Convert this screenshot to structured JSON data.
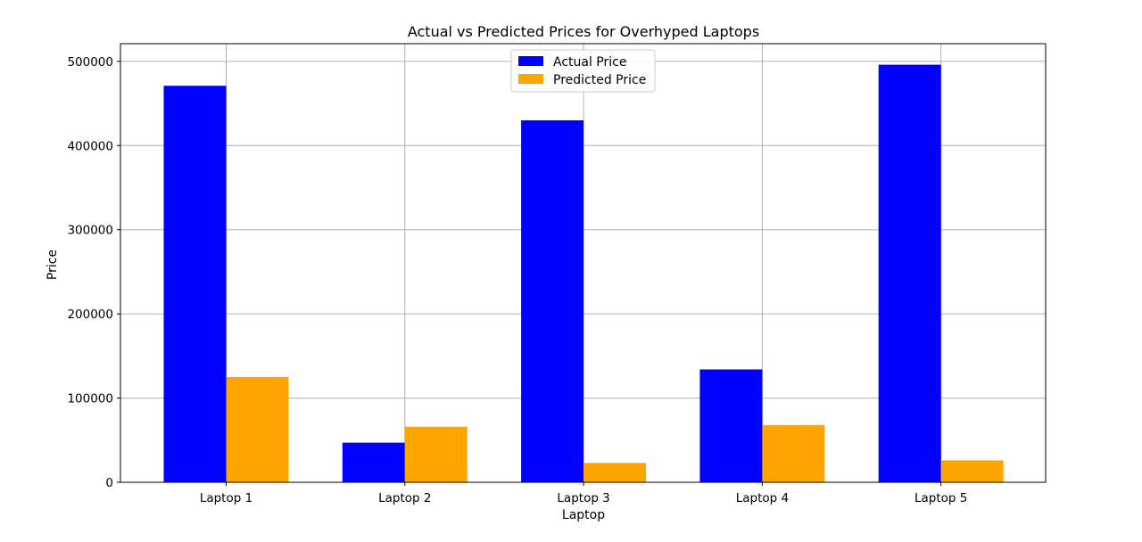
{
  "chart_data": {
    "type": "bar",
    "title": "Actual vs Predicted Prices for Overhyped Laptops",
    "xlabel": "Laptop",
    "ylabel": "Price",
    "categories": [
      "Laptop 1",
      "Laptop 2",
      "Laptop 3",
      "Laptop 4",
      "Laptop 5"
    ],
    "series": [
      {
        "name": "Actual Price",
        "color": "#0000ff",
        "values": [
          471000,
          47000,
          430000,
          134000,
          496000
        ]
      },
      {
        "name": "Predicted Price",
        "color": "#ffa500",
        "values": [
          125000,
          66000,
          23000,
          68000,
          26000
        ]
      }
    ],
    "ylim": [
      0,
      521000
    ],
    "yticks": [
      0,
      100000,
      200000,
      300000,
      400000,
      500000
    ],
    "ytick_labels": [
      "0",
      "100000",
      "200000",
      "300000",
      "400000",
      "500000"
    ],
    "grid": true,
    "legend_position": "top-center"
  }
}
